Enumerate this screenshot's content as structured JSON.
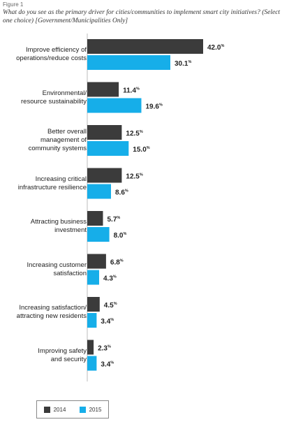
{
  "figure_label": "Figure 1",
  "question": "What do you see as the primary driver for cities/communities to implement smart city initiatives? (Select one choice) [Government/Municipalities Only]",
  "colors": {
    "2014": "#3b3b3b",
    "2015": "#16aee9"
  },
  "chart_data": {
    "type": "bar",
    "orientation": "horizontal",
    "title": "",
    "xlabel": "",
    "ylabel": "",
    "categories": [
      [
        "Improve efficiency of",
        "operations/reduce costs"
      ],
      [
        "Environmental/",
        "resource sustainability"
      ],
      [
        "Better overall",
        "management of",
        "community systems"
      ],
      [
        "Increasing critical",
        "infrastructure resilience"
      ],
      [
        "Attracting business",
        "investment"
      ],
      [
        "Increasing customer",
        "satisfaction"
      ],
      [
        "Increasing satisfaction/",
        "attracting new residents"
      ],
      [
        "Improving safety",
        "and security"
      ]
    ],
    "series": [
      {
        "name": "2014",
        "values": [
          42.0,
          11.4,
          12.5,
          12.5,
          5.7,
          6.8,
          4.5,
          2.3
        ],
        "labels": [
          "42.0",
          "11.4",
          "12.5",
          "12.5",
          "5.7",
          "6.8",
          "4.5",
          "2.3"
        ]
      },
      {
        "name": "2015",
        "values": [
          30.1,
          19.6,
          15.0,
          8.6,
          8.0,
          4.3,
          3.4,
          3.4
        ],
        "labels": [
          "30.1",
          "19.6",
          "15.0",
          "8.6",
          "8.0",
          "4.3",
          "3.4",
          "3.4"
        ]
      }
    ],
    "value_suffix": "%",
    "xlim": [
      0,
      42.0
    ],
    "grid": false,
    "legend_position": "bottom-left"
  }
}
